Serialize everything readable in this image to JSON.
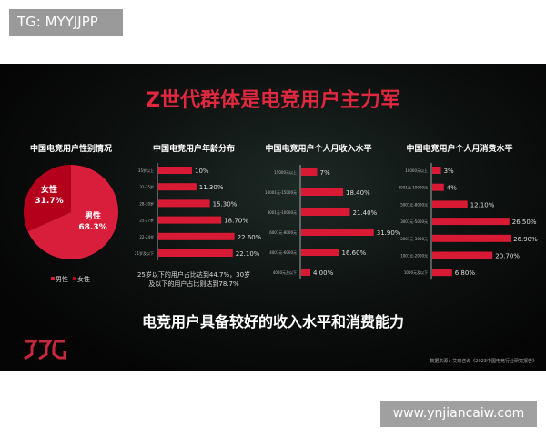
{
  "watermark_top": "TG: MYYJJPP",
  "watermark_bottom": "www.ynjiancaiw.com",
  "slide": {
    "title": "Z世代群体是电竞用户主力军",
    "subtitle": "电竞用户具备较好的收入水平和消费能力",
    "source": "数据来源：艾瑞咨询《2023中国电竞行业研究报告》",
    "logo_text": "JDG"
  },
  "colors": {
    "male": "#d81e3a",
    "female": "#b5001c",
    "bar": "#d91a35",
    "title": "#e0283f"
  },
  "chart_data": [
    {
      "type": "pie",
      "title": "中国电竞用户性别情况",
      "slices": [
        {
          "name": "男性",
          "value": 68.3,
          "label": "68.3%"
        },
        {
          "name": "女性",
          "value": 31.7,
          "label": "31.7%"
        }
      ],
      "legend": [
        "男性",
        "女性"
      ],
      "legend_placement": "bottom"
    },
    {
      "type": "bar",
      "orientation": "horizontal",
      "title": "中国电竞用户年龄分布",
      "categories": [
        "35岁以上",
        "31-35岁",
        "28-30岁",
        "25-27岁",
        "22-24岁",
        "21岁及以下"
      ],
      "values": [
        10,
        11.3,
        15.3,
        18.7,
        22.6,
        22.1
      ],
      "labels": [
        "10%",
        "11.30%",
        "15.30%",
        "18.70%",
        "22.60%",
        "22.10%"
      ],
      "note": [
        "25岁以下的用户占比达到44.7%，30岁",
        "及以下的用户占比则达到78.7%"
      ]
    },
    {
      "type": "bar",
      "orientation": "horizontal",
      "title": "中国电竞用户个人月收入水平",
      "categories": [
        "15000元以上",
        "10001元-15000元",
        "8001元-10000元",
        "6001元-8000元",
        "4001元-6000元",
        "4000元及以下"
      ],
      "values": [
        7,
        18.4,
        21.4,
        31.9,
        16.6,
        4.0
      ],
      "labels": [
        "7%",
        "18.40%",
        "21.40%",
        "31.90%",
        "16.60%",
        "4.00%"
      ]
    },
    {
      "type": "bar",
      "orientation": "horizontal",
      "title": "中国电竞用户个人月消费水平",
      "categories": [
        "10000元以上",
        "8001元-10000元",
        "5001元-8000元",
        "3001元-5000元",
        "2001元-3000元",
        "1001元-2000元",
        "1000元及以下"
      ],
      "values": [
        3,
        4,
        12.1,
        26.5,
        26.9,
        20.7,
        6.8
      ],
      "labels": [
        "3%",
        "4%",
        "12.10%",
        "26.50%",
        "26.90%",
        "20.70%",
        "6.80%"
      ]
    }
  ]
}
